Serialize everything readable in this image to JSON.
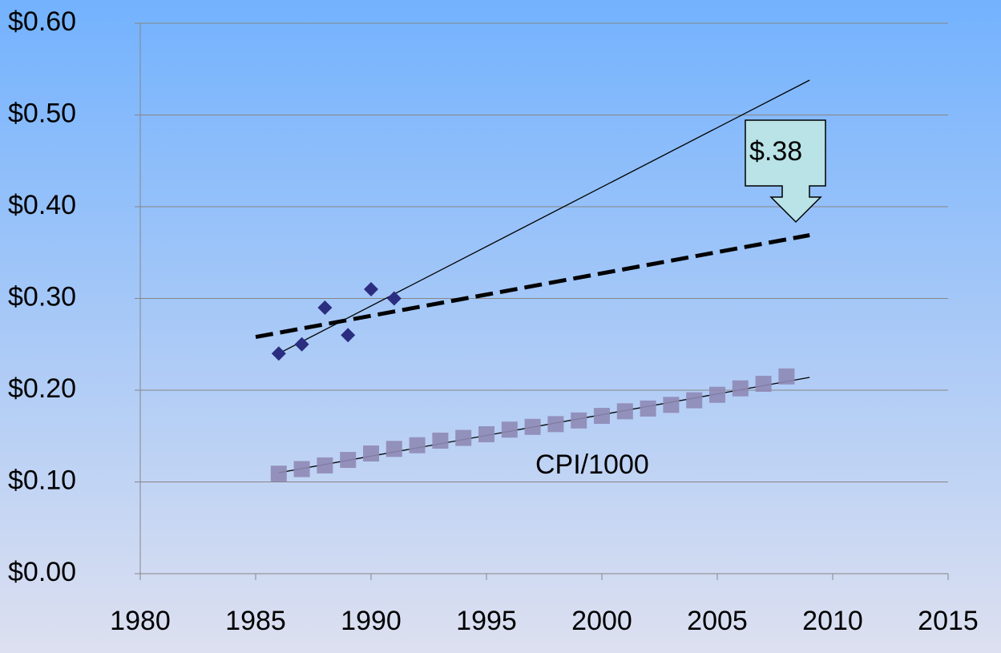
{
  "chart_data": {
    "type": "scatter",
    "xlim": [
      1980,
      2015
    ],
    "xticks": [
      1980,
      1985,
      1990,
      1995,
      2000,
      2005,
      2010,
      2015
    ],
    "ylim": [
      0,
      0.6
    ],
    "yticks": [
      {
        "value": 0,
        "label": "$0.00"
      },
      {
        "value": 0.1,
        "label": "$0.10"
      },
      {
        "value": 0.2,
        "label": "$0.20"
      },
      {
        "value": 0.3,
        "label": "$0.30"
      },
      {
        "value": 0.4,
        "label": "$0.40"
      },
      {
        "value": 0.5,
        "label": "$0.50"
      },
      {
        "value": 0.6,
        "label": "$0.60"
      }
    ],
    "grid": true,
    "series": [
      {
        "color": "#2b2d80",
        "marker": "diamond",
        "x": [
          1986,
          1987,
          1988,
          1989,
          1990,
          1991
        ],
        "values": [
          0.24,
          0.25,
          0.29,
          0.26,
          0.31,
          0.3
        ]
      },
      {
        "color": "#8e89b6",
        "marker": "square",
        "x": [
          1986,
          1987,
          1988,
          1989,
          1990,
          1991,
          1992,
          1993,
          1994,
          1995,
          1996,
          1997,
          1998,
          1999,
          2000,
          2001,
          2002,
          2003,
          2004,
          2005,
          2006,
          2007,
          2008
        ],
        "values": [
          0.109,
          0.114,
          0.118,
          0.124,
          0.131,
          0.136,
          0.14,
          0.145,
          0.148,
          0.152,
          0.157,
          0.16,
          0.163,
          0.167,
          0.172,
          0.177,
          0.18,
          0.184,
          0.189,
          0.195,
          0.202,
          0.207,
          0.215
        ]
      }
    ],
    "trendlines": [
      {
        "style": "solid",
        "x": [
          1986,
          2009
        ],
        "values": [
          0.24,
          0.538
        ]
      },
      {
        "style": "dashed",
        "x": [
          1985,
          2009
        ],
        "values": [
          0.258,
          0.369
        ]
      },
      {
        "style": "solid",
        "x": [
          1986,
          2009
        ],
        "values": [
          0.11,
          0.214
        ]
      }
    ],
    "annotations": [
      "CPI/1000",
      "$.38"
    ]
  }
}
